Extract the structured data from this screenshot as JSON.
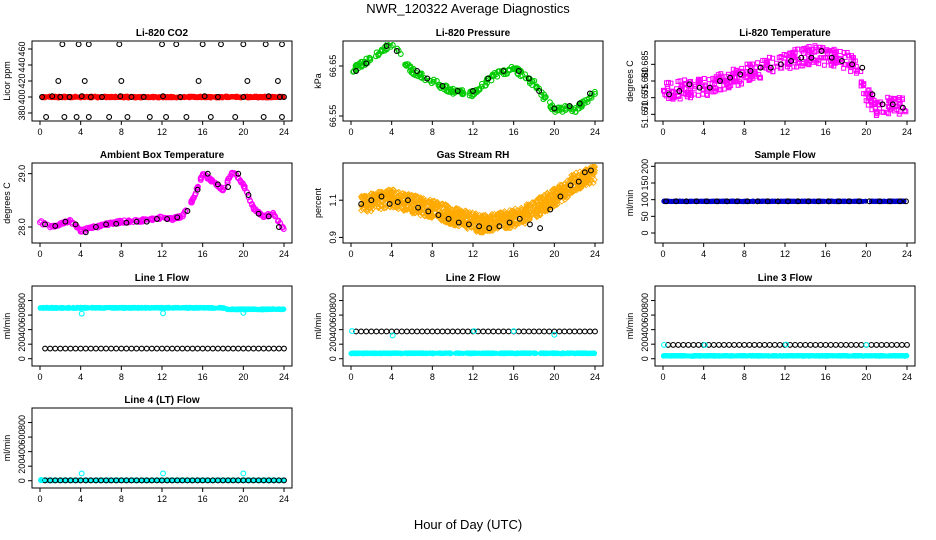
{
  "figure": {
    "title": "NWR_120322  Average Diagnostics",
    "xlabel": "Hour of Day (UTC)"
  },
  "chart_data": [
    {
      "type": "scatter",
      "title": "Li-820 CO2",
      "ylabel": "Licor ppm",
      "xlim": [
        0,
        24
      ],
      "ylim": [
        370,
        470
      ],
      "xticks": [
        "0",
        "4",
        "8",
        "12",
        "16",
        "20",
        "24"
      ],
      "yticks": [
        "380",
        "400",
        "420",
        "440",
        "460"
      ],
      "series": [
        {
          "kind": "dense",
          "color": "#ff0000",
          "marker": "dot",
          "x": [
            0.2,
            24
          ],
          "base": 400,
          "jitter": 1,
          "n": 500
        },
        {
          "kind": "points",
          "color": "#000000",
          "marker": "ring",
          "x": [
            0.2,
            1.2,
            2.0,
            2.9,
            4.1,
            5.0,
            6.1,
            7.9,
            9.0,
            10.2,
            12.1,
            13.8,
            16.2,
            17.5,
            20.0,
            22.5,
            23.6,
            24.0,
            0.6,
            2.4,
            3.6,
            4.8,
            6.8,
            8.6,
            10.8,
            12.4,
            14.4,
            16.8,
            19.2,
            22.0,
            23.8,
            1.8,
            4.4,
            8.0,
            15.6,
            20.4,
            23.4
          ],
          "y": [
            400,
            401,
            400,
            400,
            401,
            400,
            400,
            401,
            400,
            400,
            401,
            400,
            401,
            400,
            400,
            401,
            400,
            400,
            375,
            375,
            375,
            375,
            375,
            375,
            375,
            375,
            375,
            375,
            375,
            375,
            375,
            420,
            420,
            420,
            420,
            420,
            420
          ]
        },
        {
          "kind": "points",
          "color": "#000000",
          "marker": "ring",
          "x": [
            2.2,
            3.8,
            4.8,
            7.8,
            12.0,
            13.4,
            16.0,
            17.8,
            20.0,
            22.2,
            23.8
          ],
          "y": [
            466,
            466,
            466,
            466,
            466,
            466,
            466,
            466,
            466,
            466,
            466
          ]
        }
      ]
    },
    {
      "type": "scatter",
      "title": "Li-820 Pressure",
      "ylabel": "kPa",
      "xlim": [
        0,
        24
      ],
      "ylim": [
        66.54,
        66.7
      ],
      "xticks": [
        "0",
        "4",
        "8",
        "12",
        "16",
        "20",
        "24"
      ],
      "yticks": [
        "66.55",
        "66.65"
      ],
      "series": [
        {
          "kind": "dense",
          "color": "#00cc00",
          "marker": "ring",
          "curve_x": [
            0,
            2,
            4,
            6,
            8,
            10,
            12,
            14,
            16,
            18,
            20,
            21,
            22,
            24
          ],
          "curve_y": [
            66.64,
            66.665,
            66.695,
            66.64,
            66.62,
            66.6,
            66.595,
            66.63,
            66.645,
            66.615,
            66.56,
            66.565,
            66.56,
            66.595
          ],
          "jitter": 0.006,
          "n": 260
        },
        {
          "kind": "points",
          "color": "#000000",
          "marker": "ring",
          "x": [
            0.5,
            1.5,
            3.5,
            4.5,
            6.5,
            7.5,
            9.0,
            10.5,
            12.0,
            13.5,
            15.0,
            16.5,
            17.5,
            18.5,
            20.0,
            21.5,
            22.5,
            23.5
          ],
          "y": [
            66.64,
            66.655,
            66.69,
            66.68,
            66.64,
            66.625,
            66.61,
            66.6,
            66.6,
            66.625,
            66.64,
            66.64,
            66.625,
            66.6,
            66.565,
            66.57,
            66.575,
            66.595
          ]
        }
      ]
    },
    {
      "type": "scatter",
      "title": "Li-820 Temperature",
      "ylabel": "degrees C",
      "xlim": [
        0,
        24
      ],
      "ylim": [
        51.668,
        51.692
      ],
      "xticks": [
        "0",
        "4",
        "8",
        "12",
        "16",
        "20",
        "24"
      ],
      "yticks": [
        "51.670",
        "51.675",
        "51.680",
        "51.685"
      ],
      "series": [
        {
          "kind": "dense",
          "color": "#ff00ff",
          "marker": "square",
          "curve_x": [
            0,
            4,
            8,
            12,
            15,
            18,
            19,
            20,
            21,
            22,
            24
          ],
          "curve_y": [
            51.677,
            51.678,
            51.682,
            51.686,
            51.688,
            51.686,
            51.684,
            51.676,
            51.672,
            51.673,
            51.672
          ],
          "jitter": 0.0028,
          "n": 420
        },
        {
          "kind": "points",
          "color": "#000000",
          "marker": "ring",
          "x": [
            0.6,
            1.6,
            2.6,
            3.6,
            4.6,
            5.6,
            6.6,
            7.6,
            8.6,
            9.6,
            10.6,
            11.6,
            12.6,
            13.6,
            14.6,
            15.6,
            16.6,
            17.6,
            18.6,
            19.6,
            20.6,
            21.6,
            22.6,
            23.6
          ],
          "y": [
            51.676,
            51.677,
            51.679,
            51.678,
            51.678,
            51.68,
            51.681,
            51.682,
            51.683,
            51.684,
            51.684,
            51.685,
            51.686,
            51.687,
            51.687,
            51.689,
            51.687,
            51.686,
            51.685,
            51.684,
            51.676,
            51.673,
            51.673,
            51.672
          ]
        }
      ]
    },
    {
      "type": "scatter",
      "title": "Ambient Box Temperature",
      "ylabel": "degrees C",
      "xlim": [
        0,
        24
      ],
      "ylim": [
        27.7,
        29.2
      ],
      "xticks": [
        "0",
        "4",
        "8",
        "12",
        "16",
        "20",
        "24"
      ],
      "yticks": [
        "28.0",
        "29.0"
      ],
      "series": [
        {
          "kind": "dense",
          "color": "#ff00ff",
          "marker": "ring",
          "curve_x": [
            0,
            1,
            2,
            3,
            4,
            5,
            6,
            8,
            10,
            12,
            13,
            14,
            15,
            16,
            17,
            18,
            19,
            20,
            21,
            22,
            23,
            24
          ],
          "curve_y": [
            28.1,
            28.0,
            28.05,
            28.12,
            27.92,
            27.98,
            28.03,
            28.1,
            28.12,
            28.18,
            28.15,
            28.2,
            28.5,
            29.0,
            28.85,
            28.7,
            29.05,
            28.8,
            28.35,
            28.2,
            28.25,
            27.95
          ],
          "jitter": 0.025,
          "n": 300
        },
        {
          "kind": "points",
          "color": "#000000",
          "marker": "ring",
          "x": [
            0.5,
            1.5,
            2.5,
            3.5,
            4.5,
            5.5,
            6.5,
            7.5,
            8.5,
            9.5,
            10.5,
            11.5,
            12.5,
            13.5,
            14.5,
            15.5,
            16.5,
            17.5,
            18.5,
            19.5,
            20.5,
            21.5,
            22.5,
            23.5
          ],
          "y": [
            28.05,
            28.02,
            28.1,
            28.05,
            27.9,
            28.0,
            28.05,
            28.06,
            28.08,
            28.1,
            28.1,
            28.15,
            28.15,
            28.18,
            28.3,
            28.7,
            29.0,
            28.8,
            28.75,
            29.0,
            28.6,
            28.25,
            28.2,
            28.0
          ]
        }
      ]
    },
    {
      "type": "scatter",
      "title": "Gas Stream RH",
      "ylabel": "percent",
      "xlim": [
        0,
        24
      ],
      "ylim": [
        0.87,
        1.3
      ],
      "xticks": [
        "0",
        "4",
        "8",
        "12",
        "16",
        "20",
        "24"
      ],
      "yticks": [
        "0.9",
        "1.1"
      ],
      "series": [
        {
          "kind": "dense",
          "color": "#ffaa00",
          "marker": "diamond",
          "curve_x": [
            1,
            4,
            8,
            11,
            13,
            15,
            17,
            19,
            21,
            22,
            23,
            24
          ],
          "curve_y": [
            1.08,
            1.11,
            1.05,
            1.0,
            0.97,
            0.99,
            1.02,
            1.08,
            1.15,
            1.2,
            1.22,
            1.24
          ],
          "jitter": 0.05,
          "n": 1100
        },
        {
          "kind": "points",
          "color": "#000000",
          "marker": "ring",
          "x": [
            1.0,
            2.0,
            3.0,
            3.8,
            4.6,
            5.6,
            6.6,
            7.6,
            8.6,
            9.6,
            10.6,
            11.6,
            12.6,
            13.6,
            14.6,
            15.6,
            16.6,
            17.6,
            18.6,
            19.6,
            20.6,
            21.6,
            22.4,
            23.0,
            23.6
          ],
          "y": [
            1.08,
            1.1,
            1.12,
            1.08,
            1.09,
            1.1,
            1.06,
            1.04,
            1.02,
            1.0,
            0.98,
            0.97,
            0.96,
            0.95,
            0.96,
            0.98,
            1.0,
            0.97,
            0.95,
            1.05,
            1.12,
            1.18,
            1.2,
            1.25,
            1.26
          ]
        }
      ]
    },
    {
      "type": "scatter",
      "title": "Sample Flow",
      "ylabel": "ml/min",
      "xlim": [
        0,
        24
      ],
      "ylim": [
        -30,
        210
      ],
      "xticks": [
        "0",
        "4",
        "8",
        "12",
        "16",
        "20",
        "24"
      ],
      "yticks": [
        "0",
        "50",
        "100",
        "150",
        "200"
      ],
      "series": [
        {
          "kind": "dense",
          "color": "#0000cc",
          "marker": "dot",
          "x": [
            0,
            24
          ],
          "base": 95,
          "jitter": 0.5,
          "n": 380
        },
        {
          "kind": "points",
          "color": "#000000",
          "marker": "ring",
          "x": [
            0.3,
            1.3,
            2.3,
            3.3,
            4.3,
            5.3,
            6.3,
            7.3,
            8.3,
            9.3,
            10.3,
            11.3,
            12.3,
            13.3,
            14.3,
            15.3,
            16.3,
            17.3,
            18.3,
            19.3,
            20.3,
            21.3,
            22.3,
            23.3,
            23.9
          ],
          "y": [
            95,
            95,
            95,
            95,
            95,
            95,
            95,
            95,
            95,
            95,
            95,
            95,
            95,
            95,
            95,
            95,
            95,
            95,
            95,
            95,
            95,
            95,
            95,
            95,
            95
          ]
        }
      ]
    },
    {
      "type": "scatter",
      "title": "Line 1 Flow",
      "ylabel": "ml/min",
      "xlim": [
        0,
        24
      ],
      "ylim": [
        -100,
        1000
      ],
      "xticks": [
        "0",
        "4",
        "8",
        "12",
        "16",
        "20",
        "24"
      ],
      "yticks": [
        "0",
        "200",
        "400",
        "600",
        "800"
      ],
      "series": [
        {
          "kind": "dense",
          "color": "#00ffff",
          "marker": "dot",
          "curve_x": [
            0,
            18,
            18.5,
            24
          ],
          "curve_y": [
            700,
            700,
            680,
            680
          ],
          "jitter": 6,
          "n": 480
        },
        {
          "kind": "points",
          "color": "#00ffff",
          "marker": "ring",
          "x": [
            4.1,
            12.1,
            20.0
          ],
          "y": [
            620,
            625,
            630
          ]
        },
        {
          "kind": "series",
          "color": "#000000",
          "marker": "ring",
          "x0": 0.5,
          "x1": 24,
          "step": 0.5,
          "y": 140
        }
      ]
    },
    {
      "type": "scatter",
      "title": "Line 2 Flow",
      "ylabel": "ml/min",
      "xlim": [
        0,
        24
      ],
      "ylim": [
        -100,
        1000
      ],
      "xticks": [
        "0",
        "4",
        "8",
        "12",
        "16",
        "20",
        "24"
      ],
      "yticks": [
        "0",
        "200",
        "400",
        "600",
        "800"
      ],
      "series": [
        {
          "kind": "dense",
          "color": "#00ffff",
          "marker": "dot",
          "x": [
            0,
            24
          ],
          "base": 75,
          "jitter": 5,
          "n": 480
        },
        {
          "kind": "series",
          "color": "#000000",
          "marker": "ring",
          "x0": 0.5,
          "x1": 24,
          "step": 0.5,
          "y": 375
        },
        {
          "kind": "points",
          "color": "#00ffff",
          "marker": "ring",
          "x": [
            0.1,
            4.1,
            12.1,
            16.0,
            20.0
          ],
          "y": [
            380,
            320,
            380,
            380,
            330
          ]
        }
      ]
    },
    {
      "type": "scatter",
      "title": "Line 3 Flow",
      "ylabel": "ml/min",
      "xlim": [
        0,
        24
      ],
      "ylim": [
        -100,
        1000
      ],
      "xticks": [
        "0",
        "4",
        "8",
        "12",
        "16",
        "20",
        "24"
      ],
      "yticks": [
        "0",
        "200",
        "400",
        "600",
        "800"
      ],
      "series": [
        {
          "kind": "dense",
          "color": "#00ffff",
          "marker": "dot",
          "x": [
            0,
            24
          ],
          "base": 40,
          "jitter": 4,
          "n": 480
        },
        {
          "kind": "series",
          "color": "#000000",
          "marker": "ring",
          "x0": 0.5,
          "x1": 24,
          "step": 0.5,
          "y": 190
        },
        {
          "kind": "points",
          "color": "#00ffff",
          "marker": "ring",
          "x": [
            0.1,
            4.1,
            12.1,
            20.0
          ],
          "y": [
            190,
            190,
            195,
            190
          ]
        }
      ]
    },
    {
      "type": "scatter",
      "title": "Line 4 (LT) Flow",
      "ylabel": "ml/min",
      "xlim": [
        0,
        24
      ],
      "ylim": [
        -100,
        1000
      ],
      "xticks": [
        "0",
        "4",
        "8",
        "12",
        "16",
        "20",
        "24"
      ],
      "yticks": [
        "0",
        "200",
        "400",
        "600",
        "800"
      ],
      "series": [
        {
          "kind": "dense",
          "color": "#00ffff",
          "marker": "dot",
          "x": [
            0,
            24
          ],
          "base": 5,
          "jitter": 3,
          "n": 480
        },
        {
          "kind": "series",
          "color": "#000000",
          "marker": "ring",
          "x0": 0.5,
          "x1": 24,
          "step": 0.5,
          "y": 5
        },
        {
          "kind": "points",
          "color": "#00ffff",
          "marker": "ring",
          "x": [
            0.1,
            4.1,
            12.1,
            20.0
          ],
          "y": [
            10,
            100,
            100,
            100
          ]
        }
      ]
    }
  ]
}
